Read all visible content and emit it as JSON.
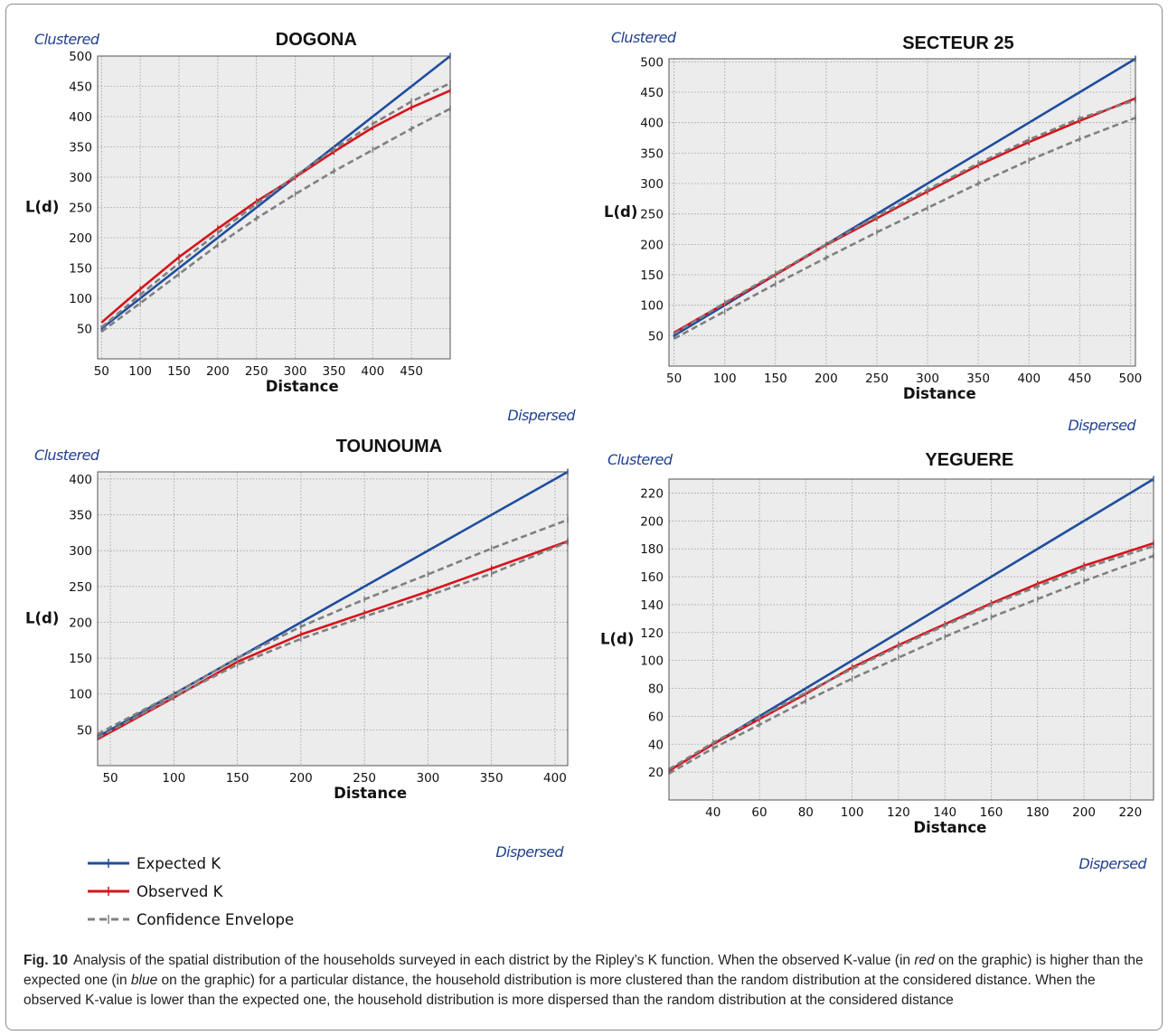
{
  "labels": {
    "clustered": "Clustered",
    "dispersed": "Dispersed",
    "xlabel": "Distance",
    "ylabel": "L(d)"
  },
  "legend": [
    {
      "name": "Expected K",
      "color": "#1f4e9e",
      "style": "solid"
    },
    {
      "name": "Observed K",
      "color": "#d6141c",
      "style": "solid"
    },
    {
      "name": "Confidence Envelope",
      "color": "#808080",
      "style": "dashed"
    }
  ],
  "caption": {
    "label": "Fig. 10",
    "part1": "Analysis of the spatial distribution of the households surveyed in each district by the Ripley’s K function. When the observed K-value (in ",
    "red_word": "red",
    "part2": " on the graphic) is higher than the expected one (in ",
    "blue_word": "blue",
    "part3": " on the graphic) for a particular distance, the household distribution is more clustered than the random distribution at the considered distance. When the observed K-value is lower than the expected one, the household distribution is more dispersed than the random distribution at the considered distance"
  },
  "chart_data": [
    {
      "type": "line",
      "title": "DOGONA",
      "xlabel": "Distance",
      "ylabel": "L(d)",
      "xlim": [
        45,
        500
      ],
      "ylim": [
        0,
        500
      ],
      "xticks": [
        50,
        100,
        150,
        200,
        250,
        300,
        350,
        400,
        450
      ],
      "yticks": [
        50,
        100,
        150,
        200,
        250,
        300,
        350,
        400,
        450,
        500
      ],
      "series": [
        {
          "name": "Expected K",
          "x": [
            50,
            500
          ],
          "y": [
            50,
            500
          ]
        },
        {
          "name": "Observed K",
          "x": [
            50,
            100,
            150,
            200,
            250,
            300,
            350,
            400,
            450,
            500
          ],
          "y": [
            60,
            115,
            168,
            215,
            260,
            300,
            342,
            382,
            415,
            443
          ]
        },
        {
          "name": "Confidence Envelope Upper",
          "x": [
            50,
            100,
            150,
            200,
            250,
            300,
            350,
            400,
            450,
            500
          ],
          "y": [
            52,
            106,
            158,
            208,
            256,
            302,
            346,
            388,
            425,
            455
          ]
        },
        {
          "name": "Confidence Envelope Lower",
          "x": [
            50,
            100,
            150,
            200,
            250,
            300,
            350,
            400,
            450,
            500
          ],
          "y": [
            45,
            92,
            140,
            188,
            232,
            272,
            310,
            345,
            380,
            413
          ]
        }
      ]
    },
    {
      "type": "line",
      "title": "SECTEUR 25",
      "xlabel": "Distance",
      "ylabel": "L(d)",
      "xlim": [
        45,
        505
      ],
      "ylim": [
        0,
        505
      ],
      "xticks": [
        50,
        100,
        150,
        200,
        250,
        300,
        350,
        400,
        450,
        500
      ],
      "yticks": [
        50,
        100,
        150,
        200,
        250,
        300,
        350,
        400,
        450,
        500
      ],
      "series": [
        {
          "name": "Expected K",
          "x": [
            50,
            505
          ],
          "y": [
            50,
            505
          ]
        },
        {
          "name": "Observed K",
          "x": [
            50,
            100,
            150,
            200,
            250,
            300,
            350,
            400,
            450,
            505
          ],
          "y": [
            55,
            103,
            150,
            199,
            243,
            287,
            330,
            368,
            403,
            440
          ]
        },
        {
          "name": "Confidence Envelope Upper",
          "x": [
            50,
            100,
            150,
            200,
            250,
            300,
            350,
            400,
            450,
            505
          ],
          "y": [
            53,
            104,
            152,
            200,
            246,
            290,
            333,
            372,
            407,
            437
          ]
        },
        {
          "name": "Confidence Envelope Lower",
          "x": [
            50,
            100,
            150,
            200,
            250,
            300,
            350,
            400,
            450,
            505
          ],
          "y": [
            45,
            90,
            135,
            178,
            220,
            260,
            300,
            338,
            373,
            408
          ]
        }
      ]
    },
    {
      "type": "line",
      "title": "TOUNOUMA",
      "xlabel": "Distance",
      "ylabel": "L(d)",
      "xlim": [
        40,
        410
      ],
      "ylim": [
        0,
        410
      ],
      "xticks": [
        50,
        100,
        150,
        200,
        250,
        300,
        350,
        400
      ],
      "yticks": [
        50,
        100,
        150,
        200,
        250,
        300,
        350,
        400
      ],
      "series": [
        {
          "name": "Expected K",
          "x": [
            40,
            410
          ],
          "y": [
            40,
            410
          ]
        },
        {
          "name": "Observed K",
          "x": [
            40,
            100,
            150,
            200,
            250,
            300,
            350,
            410
          ],
          "y": [
            37,
            95,
            145,
            183,
            213,
            243,
            275,
            313
          ]
        },
        {
          "name": "Confidence Envelope Upper",
          "x": [
            40,
            100,
            150,
            200,
            250,
            300,
            350,
            410
          ],
          "y": [
            44,
            100,
            150,
            194,
            232,
            267,
            303,
            343
          ]
        },
        {
          "name": "Confidence Envelope Lower",
          "x": [
            40,
            100,
            150,
            200,
            250,
            300,
            350,
            410
          ],
          "y": [
            39,
            96,
            141,
            177,
            208,
            237,
            268,
            312
          ]
        }
      ]
    },
    {
      "type": "line",
      "title": "YEGUERE",
      "xlabel": "Distance",
      "ylabel": "L(d)",
      "xlim": [
        21,
        230
      ],
      "ylim": [
        0,
        230
      ],
      "xticks": [
        40,
        60,
        80,
        100,
        120,
        140,
        160,
        180,
        200,
        220
      ],
      "yticks": [
        20,
        40,
        60,
        80,
        100,
        120,
        140,
        160,
        180,
        200,
        220
      ],
      "series": [
        {
          "name": "Expected K",
          "x": [
            21,
            230
          ],
          "y": [
            21,
            230
          ]
        },
        {
          "name": "Observed K",
          "x": [
            21,
            40,
            60,
            80,
            100,
            120,
            140,
            160,
            180,
            200,
            230
          ],
          "y": [
            21,
            40,
            58,
            76,
            95,
            111,
            126,
            141,
            155,
            168,
            184
          ]
        },
        {
          "name": "Confidence Envelope Upper",
          "x": [
            21,
            40,
            60,
            80,
            100,
            120,
            140,
            160,
            180,
            200,
            230
          ],
          "y": [
            22,
            41,
            59,
            77,
            94,
            110,
            125,
            140,
            153,
            166,
            182
          ]
        },
        {
          "name": "Confidence Envelope Lower",
          "x": [
            21,
            40,
            60,
            80,
            100,
            120,
            140,
            160,
            180,
            200,
            230
          ],
          "y": [
            19,
            37,
            54,
            71,
            87,
            102,
            117,
            131,
            144,
            157,
            175
          ]
        }
      ]
    }
  ]
}
